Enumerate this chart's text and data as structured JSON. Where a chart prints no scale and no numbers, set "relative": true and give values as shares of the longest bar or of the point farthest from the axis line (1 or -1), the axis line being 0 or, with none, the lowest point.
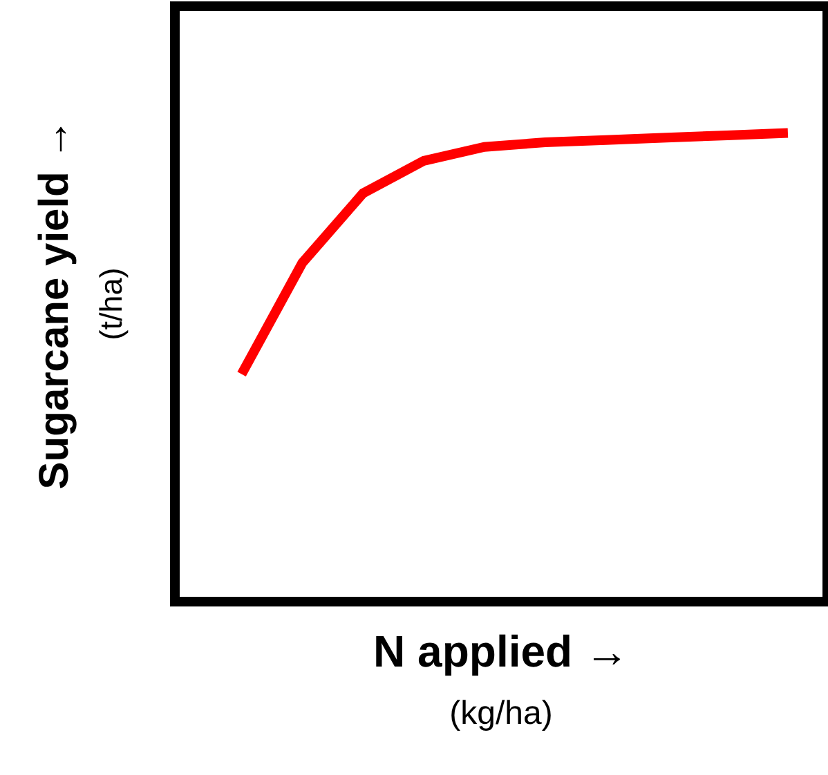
{
  "chart_data": {
    "type": "line",
    "relative": true,
    "xlabel": "N applied →\n(kg/ha)",
    "ylabel": "Sugarcane yield →\n(t/ha)",
    "categories": [
      null,
      null,
      null,
      null,
      null,
      null,
      null,
      null,
      null,
      null
    ],
    "series": [
      {
        "color": "#ff0000",
        "values": [
          0.48,
          0.72,
          0.87,
          0.94,
          0.97,
          0.98,
          0.985,
          0.99,
          0.995,
          1
        ]
      }
    ],
    "marker": "none",
    "line_style": "solid"
  }
}
